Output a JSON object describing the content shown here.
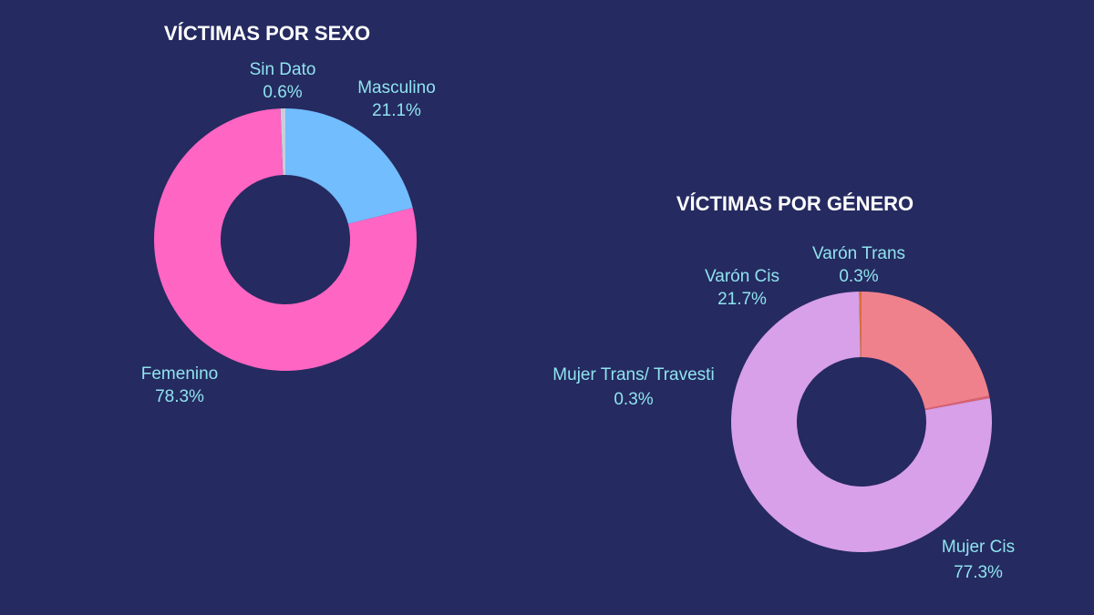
{
  "background_color": "#252a60",
  "label_color": "#8fe3ee",
  "chart_data": [
    {
      "type": "pie",
      "donut": true,
      "title": "VÍCTIMAS POR SEXO",
      "slices": [
        {
          "name": "Masculino",
          "value": 21.1,
          "value_label": "21.1%",
          "color": "#72bdfd"
        },
        {
          "name": "Femenino",
          "value": 78.3,
          "value_label": "78.3%",
          "color": "#ff65c2"
        },
        {
          "name": "Sin Dato",
          "value": 0.6,
          "value_label": "0.6%",
          "color": "#c8cdd8"
        }
      ]
    },
    {
      "type": "pie",
      "donut": true,
      "title": "VÍCTIMAS POR GÉNERO",
      "slices": [
        {
          "name": "Mujer Cis",
          "value": 77.3,
          "value_label": "77.3%",
          "color": "#d7a0e8"
        },
        {
          "name": "Mujer Trans/ Travesti",
          "value": 0.3,
          "value_label": "0.3%",
          "color": "#e0606e"
        },
        {
          "name": "Varón Cis",
          "value": 21.7,
          "value_label": "21.7%",
          "color": "#ef818c"
        },
        {
          "name": "Varón Trans",
          "value": 0.3,
          "value_label": "0.3%",
          "color": "#d8703a"
        }
      ]
    }
  ]
}
